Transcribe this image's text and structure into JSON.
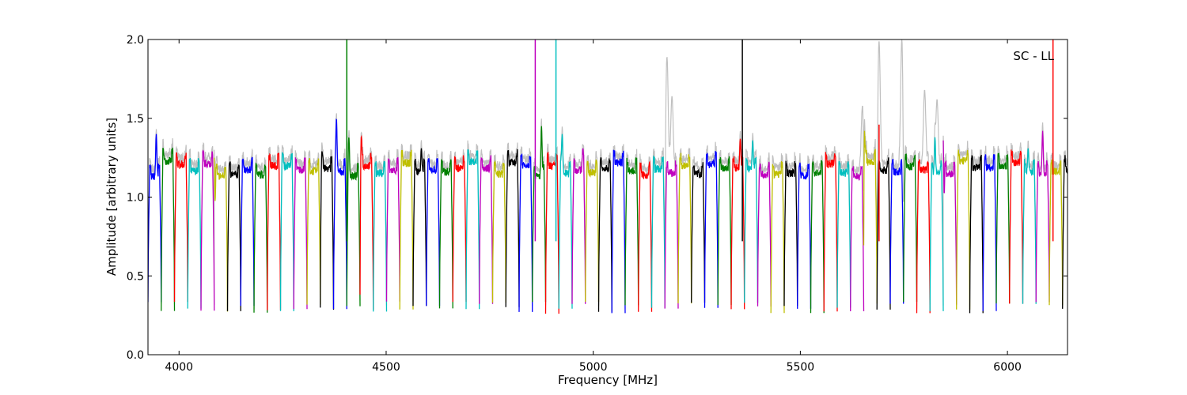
{
  "chart_data": {
    "type": "line",
    "title": "",
    "annotation": "SC - LL",
    "xlabel": "Frequency [MHz]",
    "ylabel": "Amplitude [arbitrary units]",
    "xlim": [
      3925,
      6145
    ],
    "ylim": [
      0.0,
      2.0
    ],
    "xticks": [
      4000,
      4500,
      5000,
      5500,
      6000
    ],
    "xtick_labels": [
      "4000",
      "4500",
      "5000",
      "5500",
      "6000"
    ],
    "yticks": [
      0.0,
      0.5,
      1.0,
      1.5,
      2.0
    ],
    "ytick_labels": [
      "0.0",
      "0.5",
      "1.0",
      "1.5",
      "2.0"
    ],
    "grid": false,
    "background_color": "#c0c0c0",
    "color_cycle": [
      "#0000ff",
      "#008000",
      "#ff0000",
      "#00bfbf",
      "#bf00bf",
      "#bfbf00",
      "#000000"
    ],
    "channel_width_mhz": 32,
    "channel_start_mhz": 3925,
    "typical_passband_level": 1.18,
    "typical_edge_level": 0.3,
    "channel_peaks": [
      {
        "x": 3945,
        "y": 1.4
      },
      {
        "x": 4085,
        "y": 1.25
      },
      {
        "x": 4250,
        "y": 1.28
      },
      {
        "x": 4345,
        "y": 1.29
      },
      {
        "x": 4380,
        "y": 1.5
      },
      {
        "x": 4410,
        "y": 1.38
      },
      {
        "x": 4440,
        "y": 1.39
      },
      {
        "x": 4585,
        "y": 1.31
      },
      {
        "x": 4875,
        "y": 1.45
      },
      {
        "x": 4925,
        "y": 1.4
      },
      {
        "x": 4975,
        "y": 1.31
      },
      {
        "x": 5355,
        "y": 1.37
      },
      {
        "x": 5385,
        "y": 1.36
      },
      {
        "x": 5655,
        "y": 1.42
      },
      {
        "x": 5825,
        "y": 1.38
      },
      {
        "x": 5845,
        "y": 1.36
      },
      {
        "x": 6050,
        "y": 1.31
      },
      {
        "x": 6085,
        "y": 1.42
      }
    ],
    "spikes": [
      {
        "x": 4405,
        "y": 2.0,
        "color": "#008000"
      },
      {
        "x": 4860,
        "y": 2.0,
        "color": "#bf00bf"
      },
      {
        "x": 4910,
        "y": 2.0,
        "color": "#00bfbf"
      },
      {
        "x": 5360,
        "y": 2.0,
        "color": "#000000"
      },
      {
        "x": 5690,
        "y": 1.46,
        "color": "#ff0000"
      },
      {
        "x": 6110,
        "y": 2.0,
        "color": "#ff0000"
      }
    ],
    "background_spikes": [
      {
        "x": 5178,
        "y": 1.89
      },
      {
        "x": 5190,
        "y": 1.64
      },
      {
        "x": 5650,
        "y": 1.58
      },
      {
        "x": 5690,
        "y": 1.99
      },
      {
        "x": 5745,
        "y": 2.0
      },
      {
        "x": 5800,
        "y": 1.68
      },
      {
        "x": 5830,
        "y": 1.62
      }
    ]
  }
}
